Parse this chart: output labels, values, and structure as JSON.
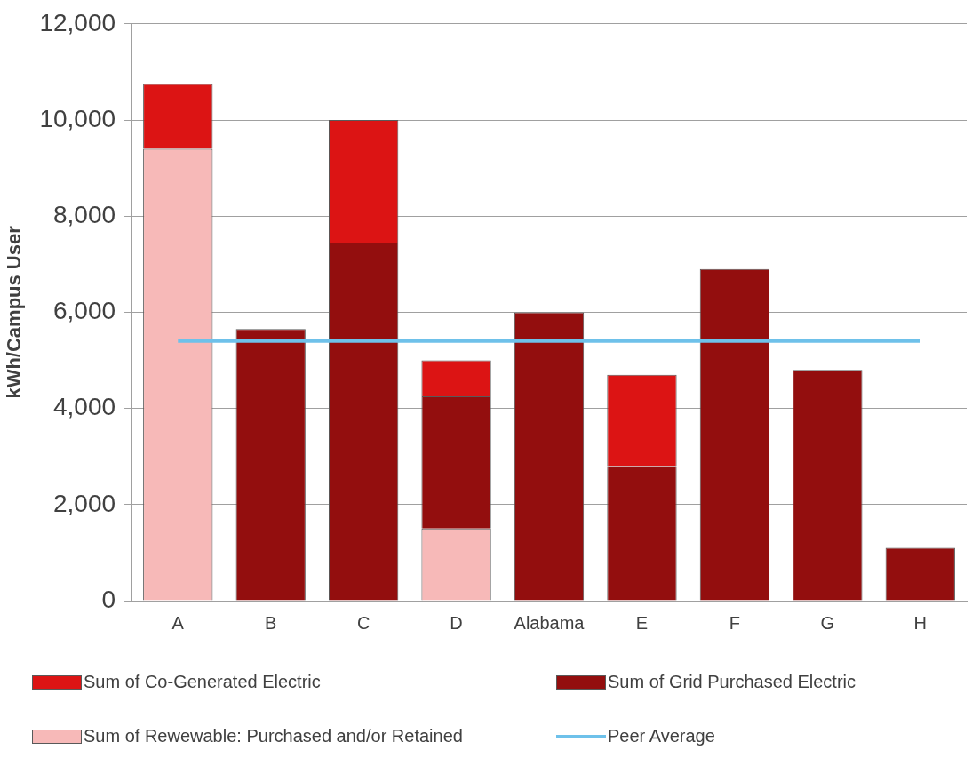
{
  "chart_data": {
    "type": "bar",
    "stacked": true,
    "ylabel": "kWh/Campus User",
    "categories": [
      "A",
      "B",
      "C",
      "D",
      "Alabama",
      "E",
      "F",
      "G",
      "H"
    ],
    "series": [
      {
        "name": "Sum of Rewewable: Purchased and/or Retained",
        "color": "#f7b9b8",
        "values": [
          9400,
          0,
          0,
          1500,
          0,
          0,
          0,
          0,
          0
        ]
      },
      {
        "name": "Sum of Grid Purchased Electric",
        "color": "#930e0e",
        "values": [
          0,
          5650,
          7450,
          2750,
          6000,
          2800,
          6900,
          4800,
          1100
        ]
      },
      {
        "name": "Sum of Co-Generated Electric",
        "color": "#dc1414",
        "values": [
          1350,
          0,
          2550,
          750,
          0,
          1900,
          0,
          0,
          0
        ]
      },
      {
        "name": "Peer Average",
        "type": "line",
        "color": "#6ec1ea",
        "values": [
          5400,
          5400,
          5400,
          5400,
          5400,
          5400,
          5400,
          5400,
          5400
        ]
      }
    ],
    "ylim": [
      0,
      12000
    ],
    "yticks": [
      0,
      {
        "value": 2000,
        "label": "2,000"
      },
      {
        "value": 4000,
        "label": "4,000"
      },
      {
        "value": 6000,
        "label": "6,000"
      },
      {
        "value": 8000,
        "label": "8,000"
      },
      {
        "value": 10000,
        "label": "10,000"
      },
      {
        "value": 12000,
        "label": "12,000"
      }
    ],
    "grid": "y",
    "legend": "bottom",
    "marker": "none"
  }
}
